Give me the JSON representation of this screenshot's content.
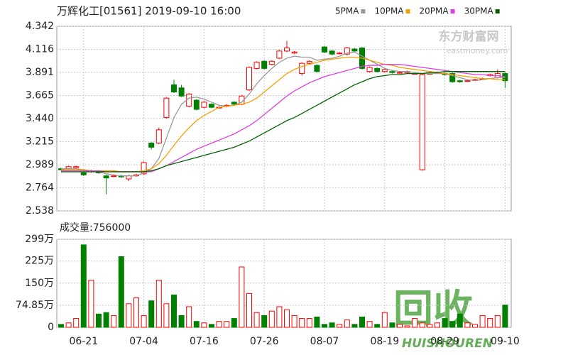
{
  "watermarks": {
    "source": "东方财富网",
    "source_url": "eastmoney.com",
    "logo": "回收",
    "logo_sub": "HUISHOUREN"
  },
  "chart_data": [
    {
      "type": "candlestick",
      "title": "万辉化工[01561] 2019-09-10 16:00",
      "up_color": "#ff0000",
      "down_color": "#008000",
      "open": [
        2.95,
        2.95,
        2.96,
        2.91,
        2.92,
        2.92,
        2.88,
        2.88,
        2.88,
        2.85,
        2.88,
        2.9,
        3.2,
        3.2,
        3.45,
        3.77,
        3.74,
        3.56,
        3.62,
        3.55,
        3.58,
        3.55,
        3.56,
        3.6,
        3.58,
        3.72,
        3.93,
        4.0,
        3.97,
        4.03,
        4.1,
        4.08,
        3.88,
        3.98,
        3.96,
        4.14,
        4.1,
        4.08,
        4.07,
        4.12,
        4.13,
        3.9,
        3.93,
        3.9,
        3.9,
        3.89,
        3.89,
        3.88,
        2.94,
        3.88,
        3.89,
        3.88,
        3.88,
        3.81,
        3.81,
        3.82,
        3.83,
        3.86,
        3.84,
        3.88
      ],
      "high": [
        2.96,
        2.98,
        2.98,
        2.92,
        2.94,
        2.93,
        2.89,
        2.89,
        2.89,
        2.89,
        2.9,
        3.02,
        3.21,
        3.35,
        3.65,
        3.82,
        3.77,
        3.69,
        3.63,
        3.61,
        3.59,
        3.56,
        3.58,
        3.61,
        3.67,
        3.95,
        4.0,
        4.01,
        4.01,
        4.11,
        4.2,
        4.1,
        3.99,
        4.01,
        3.97,
        4.15,
        4.11,
        4.09,
        4.14,
        4.13,
        4.14,
        3.95,
        3.94,
        3.93,
        3.91,
        3.9,
        3.91,
        3.89,
        3.88,
        3.89,
        3.9,
        3.89,
        3.89,
        3.82,
        3.82,
        3.83,
        3.84,
        3.88,
        3.92,
        3.89
      ],
      "low": [
        2.93,
        2.94,
        2.95,
        2.88,
        2.91,
        2.9,
        2.7,
        2.87,
        2.86,
        2.83,
        2.87,
        2.89,
        3.14,
        3.19,
        3.44,
        3.69,
        3.65,
        3.55,
        3.52,
        3.54,
        3.54,
        3.54,
        3.55,
        3.57,
        3.57,
        3.71,
        3.92,
        3.92,
        3.96,
        4.02,
        4.09,
        4.07,
        3.86,
        3.97,
        3.89,
        4.08,
        4.06,
        4.07,
        4.06,
        4.09,
        3.92,
        3.89,
        3.89,
        3.89,
        3.88,
        3.88,
        3.88,
        3.87,
        2.93,
        3.87,
        3.88,
        3.86,
        3.79,
        3.79,
        3.8,
        3.81,
        3.82,
        3.85,
        3.83,
        3.74
      ],
      "close": [
        2.94,
        2.97,
        2.97,
        2.89,
        2.93,
        2.91,
        2.86,
        2.88,
        2.87,
        2.88,
        2.89,
        3.01,
        3.16,
        3.33,
        3.64,
        3.7,
        3.66,
        3.68,
        3.53,
        3.6,
        3.55,
        3.55,
        3.57,
        3.58,
        3.66,
        3.94,
        3.99,
        3.93,
        4.0,
        4.1,
        4.13,
        4.09,
        3.98,
        4.0,
        3.9,
        4.09,
        4.07,
        4.08,
        4.13,
        4.1,
        3.93,
        3.94,
        3.9,
        3.92,
        3.89,
        3.89,
        3.9,
        3.88,
        3.87,
        3.88,
        3.89,
        3.87,
        3.8,
        3.8,
        3.81,
        3.82,
        3.83,
        3.87,
        3.88,
        3.81
      ],
      "series": [
        {
          "name": "5PMA",
          "color": "#999999",
          "values": [
            2.95,
            2.95,
            2.95,
            2.94,
            2.93,
            2.92,
            2.9,
            2.89,
            2.88,
            2.88,
            2.88,
            2.91,
            2.95,
            3.05,
            3.25,
            3.45,
            3.58,
            3.64,
            3.65,
            3.63,
            3.6,
            3.57,
            3.56,
            3.57,
            3.6,
            3.68,
            3.78,
            3.86,
            3.93,
            3.99,
            4.03,
            4.05,
            4.04,
            4.04,
            4.01,
            4.02,
            4.03,
            4.05,
            4.08,
            4.09,
            4.05,
            4.01,
            3.97,
            3.93,
            3.91,
            3.9,
            3.9,
            3.89,
            3.88,
            3.88,
            3.88,
            3.88,
            3.86,
            3.84,
            3.82,
            3.81,
            3.82,
            3.83,
            3.84,
            3.84
          ]
        },
        {
          "name": "10PMA",
          "color": "#f5a000",
          "values": [
            2.94,
            2.94,
            2.94,
            2.94,
            2.93,
            2.93,
            2.93,
            2.93,
            2.92,
            2.92,
            2.92,
            2.93,
            2.95,
            3.0,
            3.08,
            3.18,
            3.27,
            3.35,
            3.42,
            3.47,
            3.51,
            3.55,
            3.56,
            3.57,
            3.58,
            3.6,
            3.64,
            3.7,
            3.76,
            3.82,
            3.88,
            3.92,
            3.95,
            3.97,
            3.99,
            4.01,
            4.02,
            4.03,
            4.04,
            4.04,
            4.03,
            4.01,
            3.99,
            3.97,
            3.96,
            3.94,
            3.93,
            3.92,
            3.91,
            3.9,
            3.89,
            3.88,
            3.87,
            3.86,
            3.85,
            3.84,
            3.83,
            3.83,
            3.82,
            3.82
          ]
        },
        {
          "name": "20PMA",
          "color": "#e040e0",
          "values": [
            2.93,
            2.93,
            2.93,
            2.93,
            2.93,
            2.93,
            2.92,
            2.92,
            2.92,
            2.92,
            2.92,
            2.92,
            2.92,
            2.95,
            2.98,
            3.02,
            3.06,
            3.1,
            3.14,
            3.17,
            3.2,
            3.23,
            3.26,
            3.29,
            3.33,
            3.37,
            3.42,
            3.48,
            3.54,
            3.6,
            3.66,
            3.71,
            3.75,
            3.79,
            3.82,
            3.85,
            3.87,
            3.89,
            3.91,
            3.93,
            3.95,
            3.96,
            3.96,
            3.97,
            3.97,
            3.97,
            3.96,
            3.95,
            3.94,
            3.93,
            3.92,
            3.91,
            3.9,
            3.89,
            3.88,
            3.87,
            3.87,
            3.86,
            3.86,
            3.85
          ]
        },
        {
          "name": "30PMA",
          "color": "#006400",
          "values": [
            2.92,
            2.92,
            2.92,
            2.92,
            2.92,
            2.92,
            2.92,
            2.92,
            2.92,
            2.92,
            2.92,
            2.92,
            2.93,
            2.95,
            2.98,
            3.0,
            3.02,
            3.04,
            3.06,
            3.08,
            3.1,
            3.12,
            3.14,
            3.16,
            3.19,
            3.22,
            3.26,
            3.3,
            3.34,
            3.38,
            3.42,
            3.45,
            3.49,
            3.53,
            3.57,
            3.61,
            3.65,
            3.69,
            3.73,
            3.77,
            3.8,
            3.83,
            3.85,
            3.86,
            3.87,
            3.87,
            3.88,
            3.88,
            3.88,
            3.89,
            3.89,
            3.9,
            3.9,
            3.9,
            3.9,
            3.9,
            3.9,
            3.9,
            3.9,
            3.9
          ]
        }
      ],
      "ylim": [
        2.538,
        4.342
      ],
      "yticks": [
        2.538,
        2.764,
        2.989,
        3.215,
        {
          "value": 3.44,
          "label": "3.440"
        },
        3.665,
        3.891,
        4.116,
        4.342
      ],
      "grid": true
    },
    {
      "type": "bar",
      "title": "成交量:756000",
      "categories": [
        null,
        null,
        null,
        "06-21",
        null,
        null,
        null,
        null,
        null,
        null,
        null,
        "07-04",
        null,
        null,
        null,
        null,
        null,
        null,
        null,
        "07-16",
        null,
        null,
        null,
        null,
        null,
        null,
        null,
        "07-26",
        null,
        null,
        null,
        null,
        null,
        null,
        null,
        "08-07",
        null,
        null,
        null,
        null,
        null,
        null,
        null,
        "08-19",
        null,
        null,
        null,
        null,
        null,
        null,
        null,
        "08-29",
        null,
        null,
        null,
        null,
        null,
        null,
        null,
        "09-10"
      ],
      "values": [
        100000,
        150000,
        300000,
        2800000,
        1600000,
        450000,
        500000,
        400000,
        2400000,
        800000,
        1000000,
        400000,
        900000,
        1600000,
        800000,
        1100000,
        400000,
        700000,
        200000,
        150000,
        100000,
        200000,
        200000,
        300000,
        2050000,
        1150000,
        500000,
        400000,
        550000,
        700000,
        600000,
        400000,
        300000,
        300000,
        350000,
        100000,
        150000,
        100000,
        250000,
        100000,
        350000,
        200000,
        100000,
        500000,
        150000,
        100000,
        50000,
        300000,
        150000,
        100000,
        150000,
        300000,
        200000,
        450000,
        150000,
        100000,
        400000,
        300000,
        400000,
        756000
      ],
      "ylim": [
        0,
        2990000
      ],
      "yticks": [
        0,
        {
          "value": 748500,
          "label": "74.85万"
        },
        {
          "value": 1500000,
          "label": "150万"
        },
        {
          "value": 2250000,
          "label": "225万"
        },
        {
          "value": 2990000,
          "label": "299万"
        }
      ],
      "grid": true
    }
  ]
}
